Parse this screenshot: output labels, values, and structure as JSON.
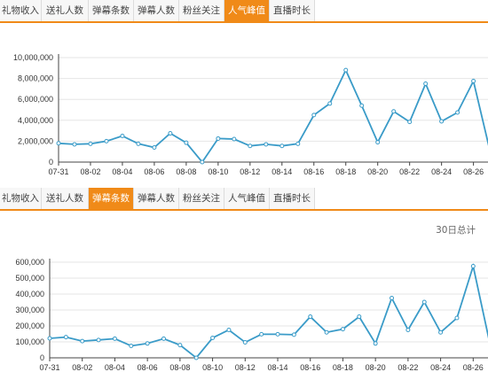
{
  "tabs_top": [
    {
      "label": "礼物收入",
      "active": false
    },
    {
      "label": "送礼人数",
      "active": false
    },
    {
      "label": "弹幕条数",
      "active": false
    },
    {
      "label": "弹幕人数",
      "active": false
    },
    {
      "label": "粉丝关注",
      "active": false
    },
    {
      "label": "人气峰值",
      "active": true
    },
    {
      "label": "直播时长",
      "active": false
    }
  ],
  "tabs_bottom": [
    {
      "label": "礼物收入",
      "active": false
    },
    {
      "label": "送礼人数",
      "active": false
    },
    {
      "label": "弹幕条数",
      "active": true
    },
    {
      "label": "弹幕人数",
      "active": false
    },
    {
      "label": "粉丝关注",
      "active": false
    },
    {
      "label": "人气峰值",
      "active": false
    },
    {
      "label": "直播时长",
      "active": false
    }
  ],
  "total_label": "30日总计",
  "colors": {
    "accent": "#f08a18",
    "line": "#3a9bc8",
    "grid": "#e6e6e6",
    "axis": "#444444"
  },
  "chart_data": [
    {
      "type": "line",
      "x": [
        "07-31",
        "08-01",
        "08-02",
        "08-03",
        "08-04",
        "08-05",
        "08-06",
        "08-07",
        "08-08",
        "08-09",
        "08-10",
        "08-11",
        "08-12",
        "08-13",
        "08-14",
        "08-15",
        "08-16",
        "08-17",
        "08-18",
        "08-19",
        "08-20",
        "08-21",
        "08-22",
        "08-23",
        "08-24",
        "08-25",
        "08-26",
        "08-27"
      ],
      "x_tick_labels": [
        "07-31",
        "08-02",
        "08-04",
        "08-06",
        "08-08",
        "08-10",
        "08-12",
        "08-14",
        "08-16",
        "08-18",
        "08-20",
        "08-22",
        "08-24",
        "08-26"
      ],
      "values": [
        1800000,
        1700000,
        1750000,
        2000000,
        2500000,
        1750000,
        1400000,
        2750000,
        1850000,
        0,
        2250000,
        2200000,
        1550000,
        1700000,
        1550000,
        1750000,
        4500000,
        5600000,
        8800000,
        5400000,
        1900000,
        4850000,
        3850000,
        7500000,
        3900000,
        4750000,
        7750000,
        1300000
      ],
      "y_tick_labels": [
        "0",
        "2,000,000",
        "4,000,000",
        "6,000,000",
        "8,000,000",
        "10,000,000"
      ],
      "ylim": [
        0,
        10000000
      ],
      "grid": true
    },
    {
      "type": "line",
      "x": [
        "07-31",
        "08-01",
        "08-02",
        "08-03",
        "08-04",
        "08-05",
        "08-06",
        "08-07",
        "08-08",
        "08-09",
        "08-10",
        "08-11",
        "08-12",
        "08-13",
        "08-14",
        "08-15",
        "08-16",
        "08-17",
        "08-18",
        "08-19",
        "08-20",
        "08-21",
        "08-22",
        "08-23",
        "08-24",
        "08-25",
        "08-26",
        "08-27"
      ],
      "x_tick_labels": [
        "07-31",
        "08-02",
        "08-04",
        "08-06",
        "08-08",
        "08-10",
        "08-12",
        "08-14",
        "08-16",
        "08-18",
        "08-20",
        "08-22",
        "08-24",
        "08-26"
      ],
      "values": [
        122000,
        130000,
        105000,
        112000,
        120000,
        75000,
        90000,
        120000,
        80000,
        0,
        125000,
        175000,
        97000,
        148000,
        148000,
        145000,
        258000,
        160000,
        180000,
        258000,
        90000,
        375000,
        175000,
        350000,
        160000,
        250000,
        575000,
        100000
      ],
      "y_tick_labels": [
        "0",
        "100,000",
        "200,000",
        "300,000",
        "400,000",
        "500,000",
        "600,000"
      ],
      "ylim": [
        0,
        600000
      ],
      "grid": true
    }
  ]
}
